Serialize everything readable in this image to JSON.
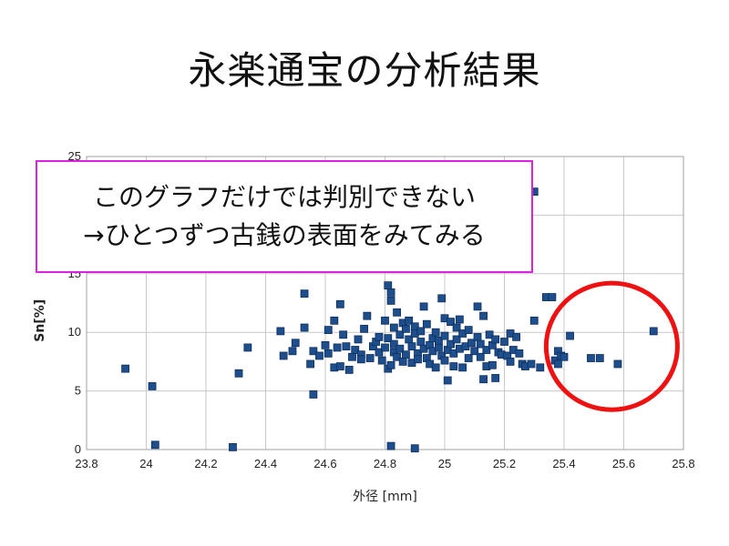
{
  "slide": {
    "title": "永楽通宝の分析結果",
    "callout_line1": "このグラフだけでは判別できない",
    "callout_line2": "→ひとつずつ古銭の表面をみてみる"
  },
  "colors": {
    "marker": "#1f4e8c",
    "callout_border": "#e020e0",
    "highlight_circle": "#ee1111"
  },
  "chart_data": {
    "type": "scatter",
    "title": "",
    "xlabel": "外径 [mm]",
    "ylabel": "Sn[%]",
    "xlim": [
      23.8,
      25.8
    ],
    "ylim": [
      0,
      25
    ],
    "xticks": [
      "23.8",
      "24",
      "24.2",
      "24.4",
      "24.6",
      "24.8",
      "25",
      "25.2",
      "25.4",
      "25.6",
      "25.8"
    ],
    "yticks": [
      "0",
      "5",
      "10",
      "15",
      "20",
      "25"
    ],
    "grid": true,
    "points": [
      [
        23.93,
        6.9
      ],
      [
        24.02,
        5.4
      ],
      [
        24.03,
        0.4
      ],
      [
        24.29,
        0.2
      ],
      [
        24.31,
        6.5
      ],
      [
        24.34,
        8.7
      ],
      [
        24.45,
        10.1
      ],
      [
        24.46,
        8.0
      ],
      [
        24.49,
        8.4
      ],
      [
        24.5,
        9.1
      ],
      [
        24.53,
        13.3
      ],
      [
        24.53,
        10.4
      ],
      [
        24.55,
        7.3
      ],
      [
        24.56,
        8.4
      ],
      [
        24.56,
        4.7
      ],
      [
        24.58,
        8.0
      ],
      [
        24.6,
        8.9
      ],
      [
        24.61,
        10.2
      ],
      [
        24.61,
        8.2
      ],
      [
        24.63,
        7.0
      ],
      [
        24.63,
        11.0
      ],
      [
        24.64,
        8.7
      ],
      [
        24.65,
        7.1
      ],
      [
        24.65,
        12.4
      ],
      [
        24.66,
        9.8
      ],
      [
        24.67,
        8.8
      ],
      [
        24.68,
        6.8
      ],
      [
        24.69,
        7.9
      ],
      [
        24.7,
        8.5
      ],
      [
        24.71,
        9.4
      ],
      [
        24.72,
        8.1
      ],
      [
        24.72,
        7.7
      ],
      [
        24.73,
        10.3
      ],
      [
        24.74,
        11.4
      ],
      [
        24.75,
        7.8
      ],
      [
        24.76,
        8.8
      ],
      [
        24.77,
        9.2
      ],
      [
        24.78,
        9.6
      ],
      [
        24.78,
        8.3
      ],
      [
        24.79,
        7.6
      ],
      [
        24.8,
        11.0
      ],
      [
        24.8,
        8.7
      ],
      [
        24.81,
        14.0
      ],
      [
        24.81,
        9.5
      ],
      [
        24.81,
        6.9
      ],
      [
        24.82,
        7.2
      ],
      [
        24.82,
        12.7
      ],
      [
        24.82,
        13.4
      ],
      [
        24.83,
        10.4
      ],
      [
        24.83,
        9.0
      ],
      [
        24.83,
        8.3
      ],
      [
        24.84,
        11.7
      ],
      [
        24.84,
        7.9
      ],
      [
        24.85,
        9.8
      ],
      [
        24.85,
        8.6
      ],
      [
        24.86,
        10.8
      ],
      [
        24.86,
        7.5
      ],
      [
        24.87,
        10.3
      ],
      [
        24.87,
        8.1
      ],
      [
        24.88,
        11.0
      ],
      [
        24.88,
        9.4
      ],
      [
        24.89,
        7.4
      ],
      [
        24.89,
        8.8
      ],
      [
        24.9,
        10.5
      ],
      [
        24.9,
        9.9
      ],
      [
        24.91,
        8.2
      ],
      [
        24.91,
        7.7
      ],
      [
        24.92,
        10.1
      ],
      [
        24.92,
        9.2
      ],
      [
        24.93,
        8.6
      ],
      [
        24.93,
        12.2
      ],
      [
        24.94,
        7.8
      ],
      [
        24.94,
        10.7
      ],
      [
        24.95,
        8.9
      ],
      [
        24.95,
        7.3
      ],
      [
        24.96,
        9.5
      ],
      [
        24.96,
        8.4
      ],
      [
        24.97,
        7.0
      ],
      [
        24.97,
        10.0
      ],
      [
        24.98,
        8.7
      ],
      [
        24.98,
        9.3
      ],
      [
        24.99,
        8.0
      ],
      [
        24.99,
        12.9
      ],
      [
        25.0,
        11.2
      ],
      [
        25.0,
        9.7
      ],
      [
        25.0,
        7.6
      ],
      [
        25.01,
        8.5
      ],
      [
        25.01,
        5.9
      ],
      [
        25.02,
        10.9
      ],
      [
        25.02,
        9.0
      ],
      [
        25.03,
        8.2
      ],
      [
        25.03,
        7.1
      ],
      [
        25.04,
        10.4
      ],
      [
        25.04,
        9.4
      ],
      [
        25.05,
        8.6
      ],
      [
        25.05,
        11.1
      ],
      [
        25.06,
        7.0
      ],
      [
        25.06,
        9.9
      ],
      [
        25.07,
        8.8
      ],
      [
        25.08,
        10.2
      ],
      [
        25.08,
        7.8
      ],
      [
        25.09,
        9.1
      ],
      [
        25.1,
        8.4
      ],
      [
        25.11,
        12.2
      ],
      [
        25.11,
        9.6
      ],
      [
        25.12,
        7.9
      ],
      [
        25.12,
        9.0
      ],
      [
        25.13,
        6.0
      ],
      [
        25.13,
        11.4
      ],
      [
        25.14,
        8.5
      ],
      [
        25.14,
        7.1
      ],
      [
        25.15,
        9.8
      ],
      [
        25.16,
        7.2
      ],
      [
        25.16,
        8.9
      ],
      [
        25.17,
        6.1
      ],
      [
        25.17,
        9.4
      ],
      [
        25.18,
        8.3
      ],
      [
        25.19,
        8.1
      ],
      [
        25.2,
        9.2
      ],
      [
        25.21,
        8.0
      ],
      [
        25.22,
        9.9
      ],
      [
        25.22,
        7.5
      ],
      [
        25.23,
        8.5
      ],
      [
        25.24,
        9.6
      ],
      [
        25.25,
        8.2
      ],
      [
        25.26,
        7.3
      ],
      [
        25.27,
        7.1
      ],
      [
        25.29,
        7.3
      ],
      [
        25.3,
        11.0
      ],
      [
        25.32,
        7.0
      ],
      [
        25.34,
        13.0
      ],
      [
        25.36,
        13.0
      ],
      [
        25.37,
        7.6
      ],
      [
        25.38,
        7.3
      ],
      [
        25.38,
        8.4
      ],
      [
        25.39,
        8.0
      ],
      [
        25.4,
        7.9
      ],
      [
        25.42,
        9.7
      ],
      [
        25.49,
        7.8
      ],
      [
        25.52,
        7.8
      ],
      [
        25.58,
        7.3
      ],
      [
        25.7,
        10.1
      ],
      [
        24.82,
        0.3
      ],
      [
        24.9,
        0.1
      ],
      [
        25.3,
        22.0
      ]
    ],
    "highlight_ellipse": {
      "center": [
        25.56,
        8.8
      ],
      "rx_data": 0.22,
      "ry_data": 5.4
    }
  }
}
